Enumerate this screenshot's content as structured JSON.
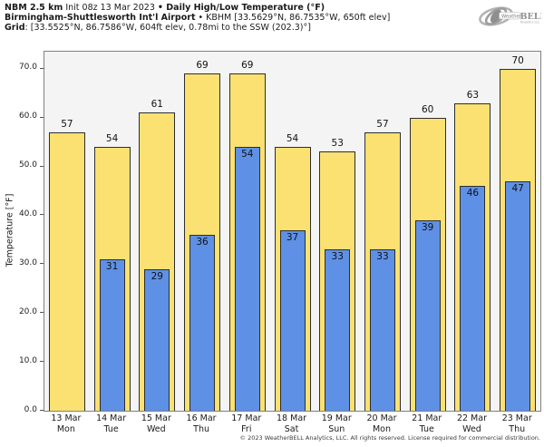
{
  "header": {
    "line1_bold1": "NBM 2.5 km",
    "line1_regular": " Init 08z 13 Mar 2023 ",
    "line1_bold2": "• Daily High/Low Temperature (°F)",
    "line2_bold": "Birmingham-Shuttlesworth Int'l Airport",
    "line2_regular": " • KBHM [33.5629°N, 86.7535°W, 650ft elev]",
    "line3_bold": "Grid",
    "line3_regular": ": [33.5525°N, 86.7586°W, 604ft elev, 0.78mi to the SSW (202.3)°]"
  },
  "logo": {
    "brand_weather": "Weather",
    "brand_bell": "BELL",
    "sub": "Analytics LLC"
  },
  "chart_data": {
    "type": "bar",
    "title": "Daily High/Low Temperature (°F)",
    "xlabel": "",
    "ylabel": "Temperature [°F]",
    "ylim": [
      0,
      73.5
    ],
    "yticks": [
      0,
      10,
      20,
      30,
      40,
      50,
      60,
      70
    ],
    "ytick_labels": [
      "0.0",
      "10.0",
      "20.0",
      "30.0",
      "40.0",
      "50.0",
      "60.0",
      "70.0"
    ],
    "grid": false,
    "legend": "none",
    "categories": [
      {
        "date": "13 Mar",
        "weekday": "Mon"
      },
      {
        "date": "14 Mar",
        "weekday": "Tue"
      },
      {
        "date": "15 Mar",
        "weekday": "Wed"
      },
      {
        "date": "16 Mar",
        "weekday": "Thu"
      },
      {
        "date": "17 Mar",
        "weekday": "Fri"
      },
      {
        "date": "18 Mar",
        "weekday": "Sat"
      },
      {
        "date": "19 Mar",
        "weekday": "Sun"
      },
      {
        "date": "20 Mar",
        "weekday": "Mon"
      },
      {
        "date": "21 Mar",
        "weekday": "Tue"
      },
      {
        "date": "22 Mar",
        "weekday": "Wed"
      },
      {
        "date": "23 Mar",
        "weekday": "Thu"
      }
    ],
    "series": [
      {
        "name": "Daily High",
        "color": "#fae172",
        "values": [
          57,
          54,
          61,
          69,
          69,
          54,
          53,
          57,
          60,
          63,
          70
        ]
      },
      {
        "name": "Daily Low",
        "color": "#5e90e6",
        "values": [
          null,
          31,
          29,
          36,
          54,
          37,
          33,
          33,
          39,
          46,
          47
        ]
      }
    ]
  },
  "colors": {
    "high_bar": "#fae172",
    "low_bar": "#5e90e6",
    "bar_border": "#2e2e2e",
    "plot_bg": "#f4f4f4",
    "frame": "#808080"
  },
  "footer": "© 2023 WeatherBELL Analytics, LLC. All rights reserved. License required for commercial distribution."
}
